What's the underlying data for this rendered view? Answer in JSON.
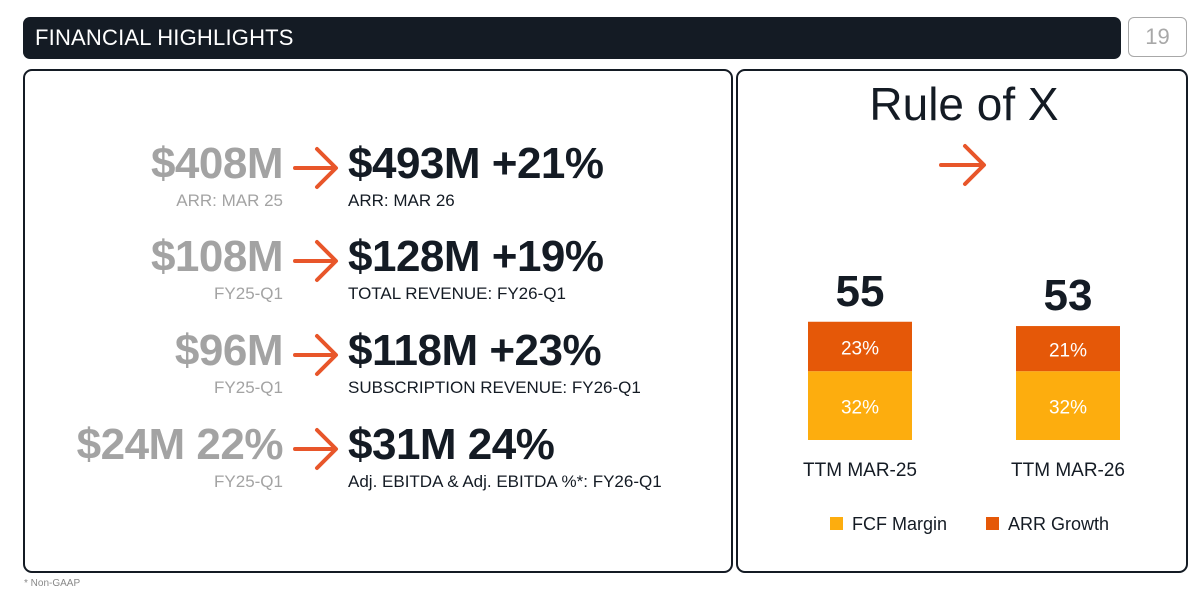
{
  "header": {
    "title": "FINANCIAL HIGHLIGHTS",
    "page_number": "19"
  },
  "colors": {
    "dark": "#141b24",
    "gray": "#a3a3a3",
    "arrow": "#e8562a",
    "fcf_margin": "#fdad0e",
    "arr_growth": "#e55808"
  },
  "metrics": [
    {
      "old_value": "$408M",
      "old_label": "ARR: MAR 25",
      "new_value": "$493M +21%",
      "new_label": "ARR: MAR 26",
      "arrow_icon": "arrow-right-icon"
    },
    {
      "old_value": "$108M",
      "old_label": "FY25-Q1",
      "new_value": "$128M +19%",
      "new_label": "TOTAL REVENUE: FY26-Q1",
      "arrow_icon": "arrow-right-icon"
    },
    {
      "old_value": "$96M",
      "old_label": "FY25-Q1",
      "new_value": "$118M +23%",
      "new_label": "SUBSCRIPTION REVENUE: FY26-Q1",
      "arrow_icon": "arrow-right-icon"
    },
    {
      "old_value": "$24M 22%",
      "old_label": "FY25-Q1",
      "new_value": "$31M 24%",
      "new_label": "Adj. EBITDA & Adj. EBITDA %*: FY26-Q1",
      "arrow_icon": "arrow-right-icon"
    }
  ],
  "footnote": "* Non-GAAP",
  "chart_data": {
    "type": "bar",
    "stacked": true,
    "title": "Rule of X",
    "categories": [
      "TTM MAR-25",
      "TTM MAR-26"
    ],
    "totals": [
      "55",
      "53"
    ],
    "series": [
      {
        "name": "FCF Margin",
        "values": [
          32,
          32
        ],
        "labels": [
          "32%",
          "32%"
        ],
        "color": "#fdad0e"
      },
      {
        "name": "ARR Growth",
        "values": [
          23,
          21
        ],
        "labels": [
          "23%",
          "21%"
        ],
        "color": "#e55808"
      }
    ],
    "legend_position": "bottom",
    "grid": false,
    "axes_visible": false
  }
}
